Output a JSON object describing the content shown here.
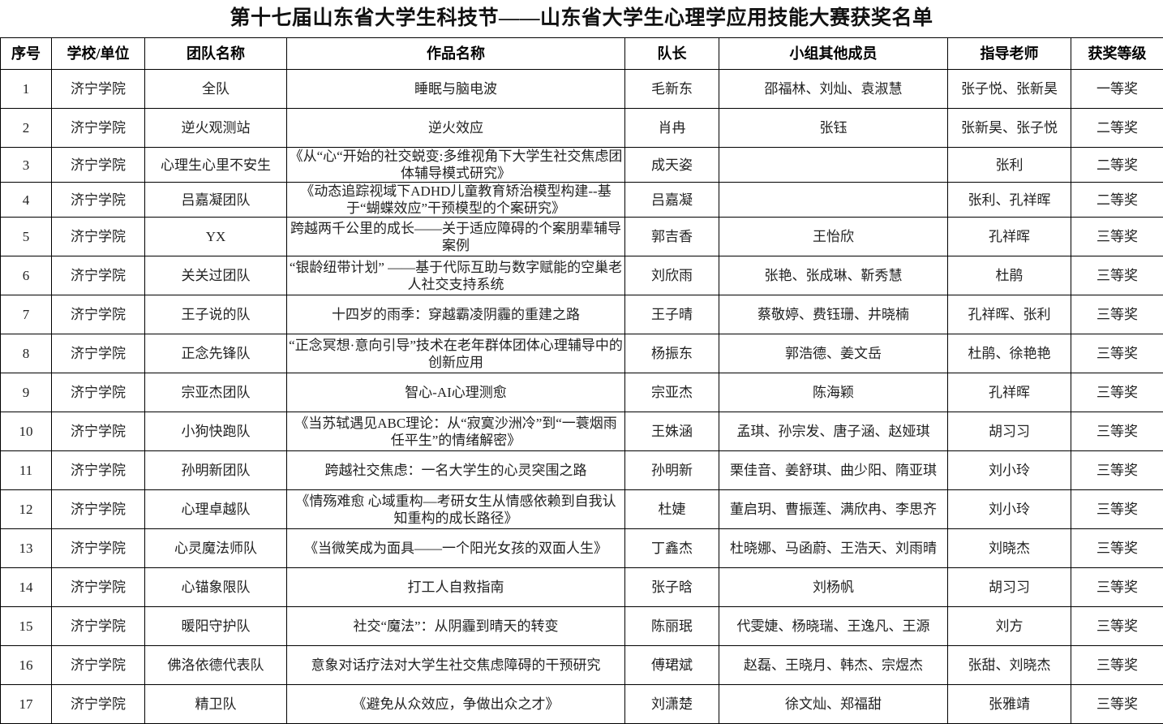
{
  "title": "第十七届山东省大学生科技节——山东省大学生心理学应用技能大赛获奖名单",
  "headers": [
    "序号",
    "学校/单位",
    "团队名称",
    "作品名称",
    "队长",
    "小组其他成员",
    "指导老师",
    "获奖等级"
  ],
  "rows": [
    [
      "1",
      "济宁学院",
      "全队",
      "睡眠与脑电波",
      "毛新东",
      "邵福林、刘灿、袁淑慧",
      "张子悦、张新昊",
      "一等奖"
    ],
    [
      "2",
      "济宁学院",
      "逆火观测站",
      "逆火效应",
      "肖冉",
      "张钰",
      "张新昊、张子悦",
      "二等奖"
    ],
    [
      "3",
      "济宁学院",
      "心理生心里不安生",
      "《从“心“开始的社交蜕变:多维视角下大学生社交焦虑团体辅导模式研究》",
      "成天姿",
      "",
      "张利",
      "二等奖"
    ],
    [
      "4",
      "济宁学院",
      "吕嘉凝团队",
      "《动态追踪视域下ADHD儿童教育矫治模型构建--基于“蝴蝶效应”干预模型的个案研究》",
      "吕嘉凝",
      "",
      "张利、孔祥晖",
      "二等奖"
    ],
    [
      "5",
      "济宁学院",
      "YX",
      "跨越两千公里的成长——关于适应障碍的个案朋辈辅导案例",
      "郭吉香",
      "王怡欣",
      "孔祥晖",
      "三等奖"
    ],
    [
      "6",
      "济宁学院",
      "关关过团队",
      "“银龄纽带计划” ——基于代际互助与数字赋能的空巢老人社交支持系统",
      "刘欣雨",
      "张艳、张成琳、靳秀慧",
      "杜鹃",
      "三等奖"
    ],
    [
      "7",
      "济宁学院",
      "王子说的队",
      "十四岁的雨季：穿越霸凌阴霾的重建之路",
      "王子晴",
      "蔡敬婷、费钰珊、井晓楠",
      "孔祥晖、张利",
      "三等奖"
    ],
    [
      "8",
      "济宁学院",
      "正念先锋队",
      "“正念冥想·意向引导”技术在老年群体团体心理辅导中的创新应用",
      "杨振东",
      "郭浩德、姜文岳",
      "杜鹃、徐艳艳",
      "三等奖"
    ],
    [
      "9",
      "济宁学院",
      "宗亚杰团队",
      "智心-AI心理测愈",
      "宗亚杰",
      "陈海颖",
      "孔祥晖",
      "三等奖"
    ],
    [
      "10",
      "济宁学院",
      "小狗快跑队",
      "《当苏轼遇见ABC理论：从“寂寞沙洲冷”到“一蓑烟雨任平生”的情绪解密》",
      "王姝涵",
      "孟琪、孙宗发、唐子涵、赵娅琪",
      "胡习习",
      "三等奖"
    ],
    [
      "11",
      "济宁学院",
      "孙明新团队",
      "跨越社交焦虑：一名大学生的心灵突围之路",
      "孙明新",
      "栗佳音、姜舒琪、曲少阳、隋亚琪",
      "刘小玲",
      "三等奖"
    ],
    [
      "12",
      "济宁学院",
      "心理卓越队",
      "《情殇难愈 心域重构—考研女生从情感依赖到自我认知重构的成长路径》",
      "杜婕",
      "董启玥、曹振莲、满欣冉、李思齐",
      "刘小玲",
      "三等奖"
    ],
    [
      "13",
      "济宁学院",
      "心灵魔法师队",
      "《当微笑成为面具——一个阳光女孩的双面人生》",
      "丁鑫杰",
      "杜晓娜、马函蔚、王浩天、刘雨晴",
      "刘晓杰",
      "三等奖"
    ],
    [
      "14",
      "济宁学院",
      "心锚象限队",
      "打工人自救指南",
      "张子晗",
      "刘杨帆",
      "胡习习",
      "三等奖"
    ],
    [
      "15",
      "济宁学院",
      "暖阳守护队",
      "社交“魔法”：从阴霾到晴天的转变",
      "陈丽珉",
      "代雯婕、杨晓瑞、王逸凡、王源",
      "刘方",
      "三等奖"
    ],
    [
      "16",
      "济宁学院",
      "佛洛依德代表队",
      "意象对话疗法对大学生社交焦虑障碍的干预研究",
      "傅珺斌",
      "赵磊、王晓月、韩杰、宗煜杰",
      "张甜、刘晓杰",
      "三等奖"
    ],
    [
      "17",
      "济宁学院",
      "精卫队",
      "《避免从众效应，争做出众之才》",
      "刘潇楚",
      "徐文灿、郑福甜",
      "张雅靖",
      "三等奖"
    ]
  ]
}
